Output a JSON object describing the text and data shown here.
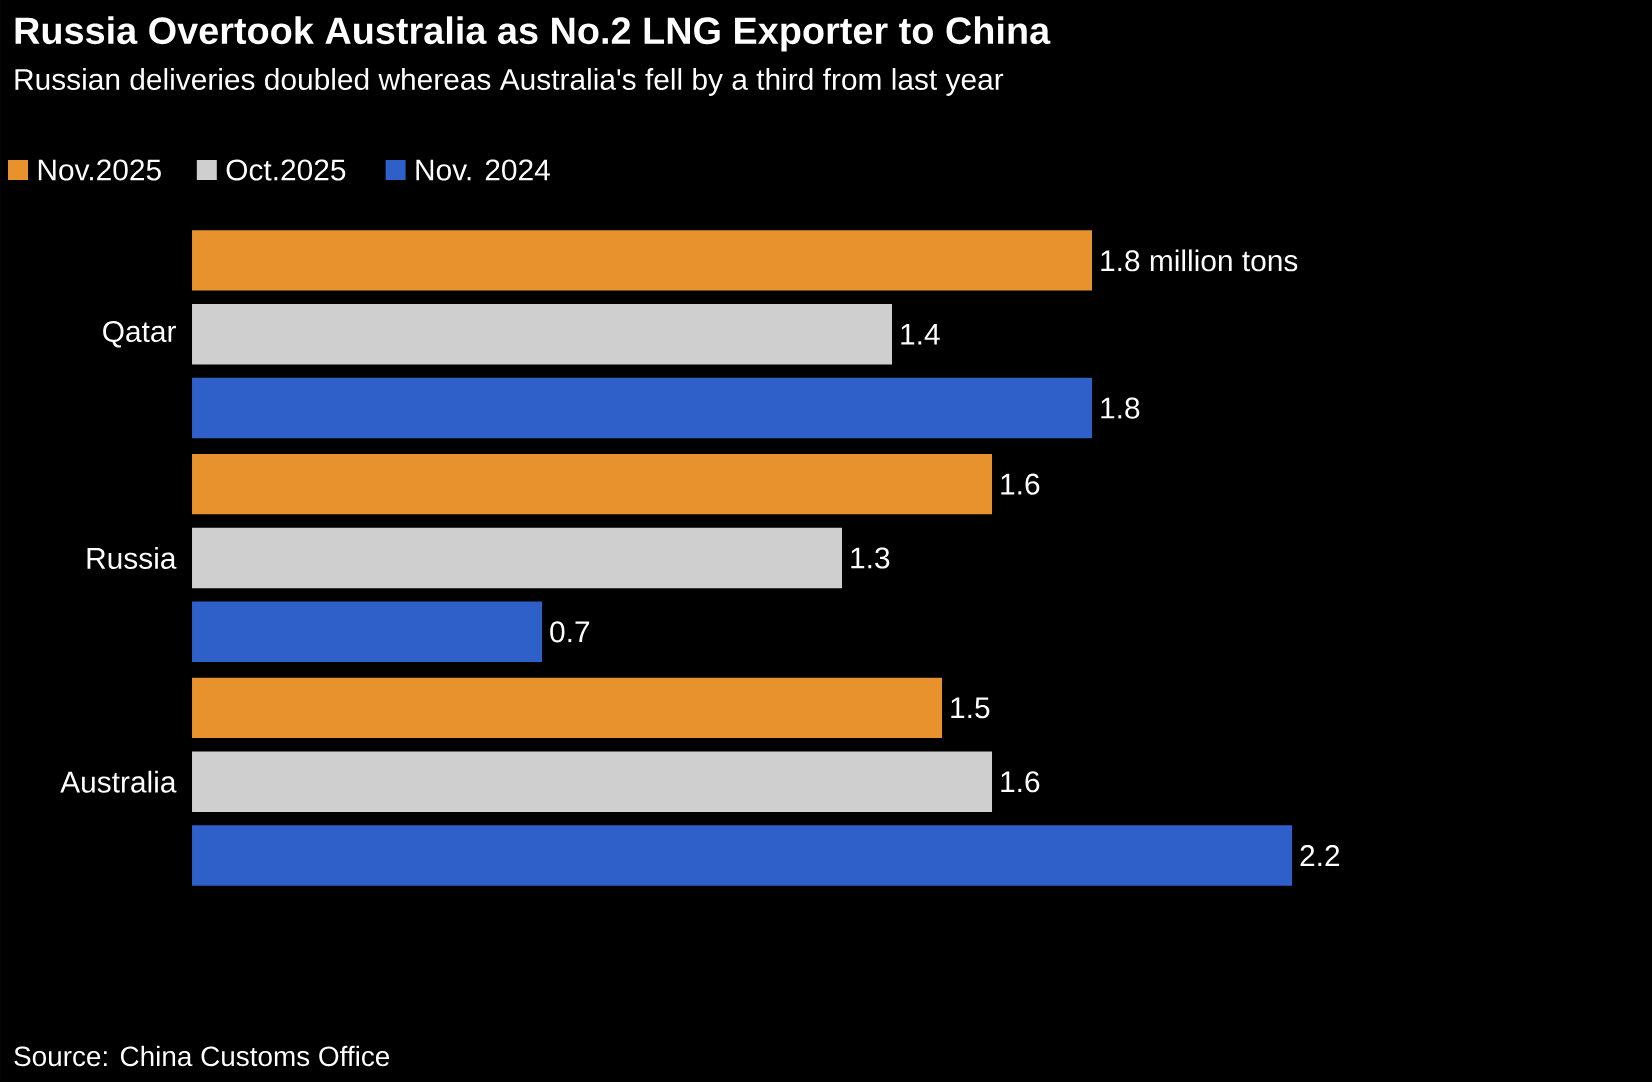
{
  "chart_data": {
    "type": "bar",
    "orientation": "horizontal",
    "title": "Russia Overtook Australia as No.2 LNG Exporter to China",
    "subtitle": "Russian deliveries doubled whereas Australia's fell by a third from last year",
    "categories": [
      "Qatar",
      "Russia",
      "Australia"
    ],
    "series": [
      {
        "name": "Nov.2025",
        "color": "#e8922e",
        "values": [
          1.8,
          1.6,
          1.5
        ],
        "value_labels": [
          "1.8 million tons",
          "1.6",
          "1.5"
        ]
      },
      {
        "name": "Oct.2025",
        "color": "#cfcfcf",
        "values": [
          1.4,
          1.3,
          1.6
        ],
        "value_labels": [
          "1.4",
          "1.3",
          "1.6"
        ]
      },
      {
        "name": "Nov. 2024",
        "color": "#2f5fc8",
        "values": [
          1.8,
          0.7,
          2.2
        ],
        "value_labels": [
          "1.8",
          "0.7",
          "2.2"
        ]
      }
    ],
    "legend": "top left",
    "annotations": [
      "Source: China Customs Office"
    ]
  }
}
